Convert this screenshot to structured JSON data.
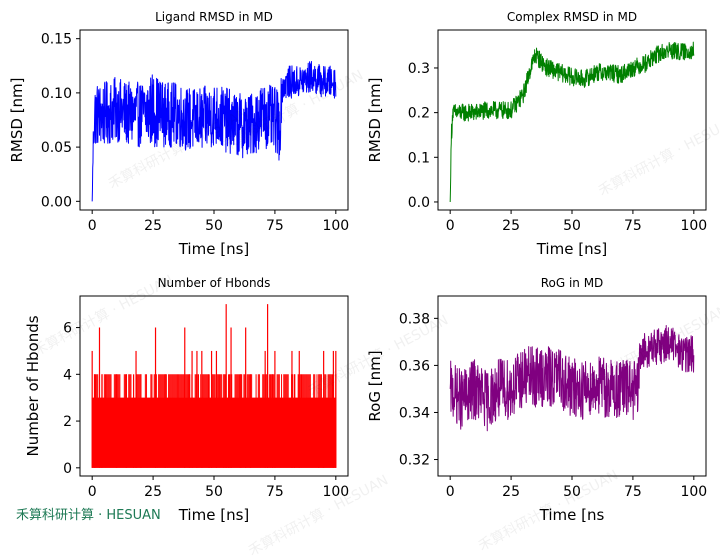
{
  "brand_text": "禾算科研计算 · HESUAN",
  "watermark_text": "禾算科研计算 · HESUAN",
  "chart_data": [
    {
      "type": "line",
      "title": "Ligand RMSD in MD",
      "xlabel": "Time [ns]",
      "ylabel": "RMSD [nm]",
      "xlim": [
        -5,
        105
      ],
      "ylim": [
        -0.008,
        0.158
      ],
      "xticks": [
        0,
        25,
        50,
        75,
        100
      ],
      "yticks": [
        0.0,
        0.05,
        0.1,
        0.15
      ],
      "ytick_labels": [
        "0.00",
        "0.05",
        "0.10",
        "0.15"
      ],
      "color": "#0000ff",
      "series": [
        {
          "x": [
            0,
            0.5,
            1,
            5,
            10,
            15,
            20,
            25,
            30,
            35,
            40,
            45,
            50,
            55,
            60,
            65,
            70,
            75,
            77,
            78,
            80,
            85,
            90,
            95,
            100
          ],
          "y": [
            0.0,
            0.06,
            0.08,
            0.08,
            0.085,
            0.08,
            0.08,
            0.085,
            0.08,
            0.08,
            0.075,
            0.075,
            0.08,
            0.075,
            0.07,
            0.07,
            0.08,
            0.075,
            0.07,
            0.105,
            0.11,
            0.11,
            0.115,
            0.11,
            0.11
          ],
          "band": [
            0,
            0.02,
            0.03,
            0.03,
            0.03,
            0.03,
            0.03,
            0.035,
            0.03,
            0.03,
            0.03,
            0.03,
            0.03,
            0.03,
            0.03,
            0.03,
            0.03,
            0.03,
            0.035,
            0.015,
            0.015,
            0.015,
            0.015,
            0.015,
            0.015
          ]
        }
      ]
    },
    {
      "type": "line",
      "title": "Complex RMSD in MD",
      "xlabel": "Time [ns]",
      "ylabel": "RMSD [nm]",
      "xlim": [
        -5,
        105
      ],
      "ylim": [
        -0.018,
        0.385
      ],
      "xticks": [
        0,
        25,
        50,
        75,
        100
      ],
      "yticks": [
        0.0,
        0.1,
        0.2,
        0.3
      ],
      "ytick_labels": [
        "0.0",
        "0.1",
        "0.2",
        "0.3"
      ],
      "color": "#008000",
      "series": [
        {
          "x": [
            0,
            0.5,
            1,
            3,
            5,
            10,
            15,
            20,
            25,
            30,
            33,
            35,
            38,
            40,
            45,
            50,
            55,
            60,
            65,
            70,
            75,
            80,
            85,
            90,
            95,
            100
          ],
          "y": [
            0.0,
            0.15,
            0.2,
            0.2,
            0.2,
            0.2,
            0.205,
            0.205,
            0.205,
            0.24,
            0.3,
            0.33,
            0.31,
            0.3,
            0.29,
            0.28,
            0.275,
            0.29,
            0.29,
            0.285,
            0.3,
            0.31,
            0.33,
            0.34,
            0.335,
            0.34
          ],
          "band": [
            0,
            0.03,
            0.02,
            0.02,
            0.02,
            0.02,
            0.02,
            0.02,
            0.02,
            0.02,
            0.02,
            0.02,
            0.02,
            0.02,
            0.02,
            0.02,
            0.02,
            0.02,
            0.02,
            0.02,
            0.02,
            0.02,
            0.02,
            0.02,
            0.02,
            0.02
          ]
        }
      ]
    },
    {
      "type": "bar",
      "title": "Number of Hbonds",
      "xlabel": "Time [ns]",
      "ylabel": "Number of Hbonds",
      "xlim": [
        -5,
        105
      ],
      "ylim": [
        -0.35,
        7.35
      ],
      "xticks": [
        0,
        25,
        50,
        75,
        100
      ],
      "yticks": [
        0,
        2,
        4,
        6
      ],
      "ytick_labels": [
        "0",
        "2",
        "4",
        "6"
      ],
      "color": "#ff0000",
      "series": [
        {
          "base": 3,
          "x": [
            0,
            1,
            3,
            4,
            10,
            14,
            17,
            18,
            20,
            26,
            30,
            38,
            40,
            41,
            43,
            45,
            48,
            49,
            51,
            54,
            55,
            56,
            57,
            61,
            63,
            65,
            71,
            72,
            74,
            75,
            82,
            83,
            85,
            93,
            95,
            99,
            100
          ],
          "y": [
            5,
            4,
            6,
            4,
            4,
            4,
            4,
            5,
            4,
            6,
            4,
            6,
            4,
            5,
            5,
            5,
            4,
            5,
            5,
            4,
            7,
            4,
            6,
            4,
            6,
            4,
            5,
            7,
            4,
            5,
            5,
            4,
            5,
            4,
            5,
            5,
            5
          ]
        }
      ]
    },
    {
      "type": "line",
      "title": "RoG in MD",
      "xlabel": "Time [ns",
      "ylabel": "RoG [nm]",
      "xlim": [
        -5,
        105
      ],
      "ylim": [
        0.313,
        0.3895
      ],
      "xticks": [
        0,
        25,
        50,
        75,
        100
      ],
      "yticks": [
        0.32,
        0.34,
        0.36,
        0.38
      ],
      "ytick_labels": [
        "0.32",
        "0.34",
        "0.36",
        "0.38"
      ],
      "color": "#800080",
      "series": [
        {
          "x": [
            0,
            5,
            10,
            15,
            20,
            25,
            30,
            35,
            40,
            45,
            50,
            55,
            60,
            65,
            70,
            75,
            77,
            78,
            80,
            85,
            90,
            95,
            100
          ],
          "y": [
            0.35,
            0.345,
            0.35,
            0.345,
            0.35,
            0.35,
            0.355,
            0.355,
            0.355,
            0.355,
            0.35,
            0.35,
            0.352,
            0.35,
            0.35,
            0.35,
            0.348,
            0.365,
            0.366,
            0.368,
            0.37,
            0.365,
            0.365
          ],
          "band": [
            0.012,
            0.013,
            0.013,
            0.013,
            0.013,
            0.013,
            0.013,
            0.013,
            0.013,
            0.013,
            0.013,
            0.013,
            0.013,
            0.013,
            0.013,
            0.013,
            0.013,
            0.008,
            0.008,
            0.008,
            0.008,
            0.008,
            0.008
          ]
        }
      ]
    }
  ]
}
